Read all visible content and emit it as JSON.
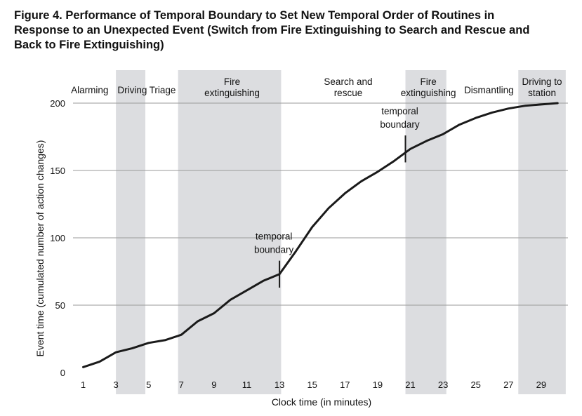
{
  "figure": {
    "title_lines": [
      "Figure 4.  Performance of Temporal Boundary to Set New Temporal Order of Routines in",
      "Response to an Unexpected Event (Switch from Fire Extinguishing to Search and Rescue and",
      "Back to Fire Extinguishing)"
    ]
  },
  "chart_data": {
    "type": "line",
    "title": "Figure 4.  Performance of Temporal Boundary to Set New Temporal Order of Routines in Response to an Unexpected Event (Switch from Fire Extinguishing to Search and Rescue and Back to Fire Extinguishing)",
    "xlabel": "Clock time (in minutes)",
    "ylabel": "Event time (cumulated number of action changes)",
    "xlim": [
      1,
      30.5
    ],
    "ylim": [
      0,
      200
    ],
    "xticks": [
      1,
      3,
      5,
      7,
      9,
      11,
      13,
      15,
      17,
      19,
      21,
      23,
      25,
      27,
      29
    ],
    "yticks": [
      0,
      50,
      100,
      150,
      200
    ],
    "grid": "horizontal",
    "line_color": "#1a1a1a",
    "band_color": "#dcdde0",
    "series": [
      {
        "x": [
          1,
          2,
          3,
          4,
          5,
          6,
          7,
          8,
          9,
          10,
          11,
          12,
          13,
          14,
          15,
          16,
          17,
          18,
          19,
          20,
          21,
          22,
          23,
          24,
          25,
          26,
          27,
          28,
          29,
          30
        ],
        "y": [
          4,
          8,
          15,
          18,
          22,
          24,
          28,
          38,
          44,
          54,
          61,
          68,
          73,
          90,
          108,
          122,
          133,
          142,
          149,
          157,
          166,
          172,
          177,
          184,
          189,
          193,
          196,
          198,
          199,
          200
        ]
      }
    ],
    "shaded_phases": [
      {
        "x_start": 3,
        "x_end": 4.8
      },
      {
        "x_start": 6.8,
        "x_end": 13.1
      },
      {
        "x_start": 20.7,
        "x_end": 23.2
      },
      {
        "x_start": 27.6,
        "x_end": 30.5
      }
    ],
    "phase_labels": [
      {
        "lines": [
          "Alarming"
        ],
        "x": 1.4
      },
      {
        "lines": [
          "Driving"
        ],
        "x": 4.0
      },
      {
        "lines": [
          "Triage"
        ],
        "x": 5.85
      },
      {
        "lines": [
          "Fire",
          "extinguishing"
        ],
        "x": 10.1
      },
      {
        "lines": [
          "Search and",
          "rescue"
        ],
        "x": 17.2
      },
      {
        "lines": [
          "Fire",
          "extinguishing"
        ],
        "x": 22.1
      },
      {
        "lines": [
          "Dismantling"
        ],
        "x": 25.8
      },
      {
        "lines": [
          "Driving to",
          "station"
        ],
        "x": 29.05
      }
    ],
    "annotations": [
      {
        "lines": [
          "temporal",
          "boundary"
        ],
        "x": 13,
        "y": 73,
        "tick_half": 10
      },
      {
        "lines": [
          "temporal",
          "boundary"
        ],
        "x": 20.7,
        "y": 166,
        "tick_half": 10
      }
    ]
  }
}
